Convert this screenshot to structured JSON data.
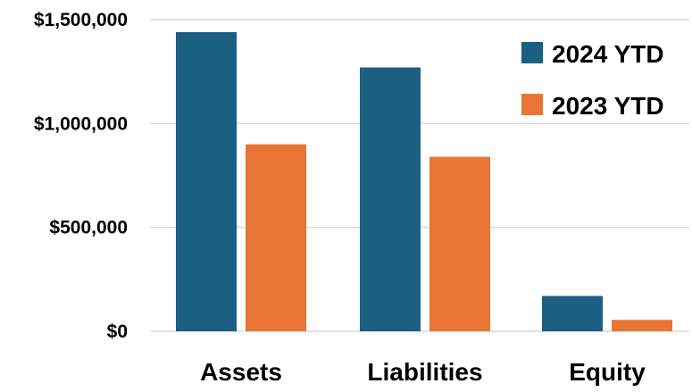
{
  "chart_data": {
    "type": "bar",
    "categories": [
      "Assets",
      "Liabilities",
      "Equity"
    ],
    "series": [
      {
        "name": "2024 YTD",
        "color": "#1b5f82",
        "values": [
          1440000,
          1270000,
          170000
        ]
      },
      {
        "name": "2023 YTD",
        "color": "#e87533",
        "values": [
          900000,
          840000,
          55000
        ]
      }
    ],
    "y_ticks": [
      {
        "value": 0,
        "label": "$0"
      },
      {
        "value": 500000,
        "label": "$500,000"
      },
      {
        "value": 1000000,
        "label": "$1,000,000"
      },
      {
        "value": 1500000,
        "label": "$1,500,000"
      }
    ],
    "ylim": [
      0,
      1500000
    ],
    "grid": true,
    "gridline_color": "#d9d9d9",
    "legend_position": "top-right",
    "title": "",
    "xlabel": "",
    "ylabel": ""
  }
}
